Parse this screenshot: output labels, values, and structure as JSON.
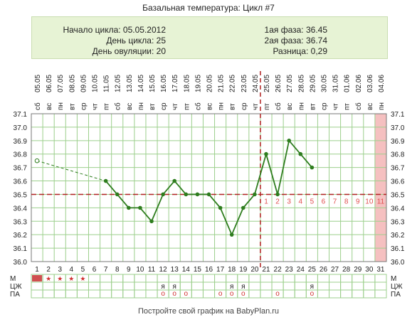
{
  "title": "Базальная температура: Цикл #7",
  "info": {
    "cycle_start": "Начало цикла: 05.05.2012",
    "cycle_day": "День цикла: 25",
    "ovulation_day": "День овуляции: 20",
    "phase1": "1ая фаза: 36.45",
    "phase2": "2ая фаза: 36.74",
    "difference": "Разница: 0,29"
  },
  "footer": "Постройте свой график на BabyPlan.ru",
  "colors": {
    "line": "#2e7d1e",
    "coverline": "#b02020",
    "ovulation_line": "#b02020",
    "luteal_numbers": "#e05050",
    "highlight_day": "#f5c0c0",
    "grid": "#9ccf8c",
    "period_cell": "#d05050",
    "star": "#d03030"
  },
  "chart_data": {
    "type": "line",
    "title": "Базальная температура: Цикл #7",
    "ylim": [
      36.0,
      37.1
    ],
    "yticks": [
      "37.1",
      "37.0",
      "36.9",
      "36.8",
      "36.7",
      "36.6",
      "36.5",
      "36.4",
      "36.3",
      "36.2",
      "36.1",
      "36.0"
    ],
    "weekdays": [
      "сб",
      "вс",
      "пн",
      "вт",
      "ср",
      "чт",
      "пт",
      "сб",
      "вс",
      "пн",
      "вт",
      "ср",
      "чт",
      "пт",
      "сб",
      "вс",
      "пн",
      "вт",
      "ср",
      "чт",
      "пт",
      "сб",
      "вс",
      "пн",
      "вт",
      "ср",
      "чт",
      "пт",
      "сб",
      "вс",
      "пн"
    ],
    "dates": [
      "05.05",
      "06.05",
      "07.05",
      "08.05",
      "09.05",
      "10.05",
      "11.05",
      "12.05",
      "13.05",
      "14.05",
      "15.05",
      "16.05",
      "17.05",
      "18.05",
      "19.05",
      "20.05",
      "21.05",
      "22.05",
      "23.05",
      "24.05",
      "25.05",
      "26.05",
      "27.05",
      "28.05",
      "29.05",
      "30.05",
      "31.05",
      "01.06",
      "02.06",
      "03.06",
      "04.06"
    ],
    "days": [
      "1",
      "2",
      "3",
      "4",
      "5",
      "6",
      "7",
      "8",
      "9",
      "10",
      "11",
      "12",
      "13",
      "14",
      "15",
      "16",
      "17",
      "18",
      "19",
      "20",
      "21",
      "22",
      "23",
      "24",
      "25",
      "26",
      "27",
      "28",
      "29",
      "30",
      "31"
    ],
    "temperatures": [
      36.75,
      null,
      null,
      null,
      null,
      null,
      36.6,
      36.5,
      36.4,
      36.4,
      36.3,
      36.5,
      36.6,
      36.5,
      36.5,
      36.5,
      36.4,
      36.2,
      36.4,
      36.5,
      36.8,
      36.5,
      36.9,
      36.8,
      36.7,
      null,
      null,
      null,
      null,
      null,
      null
    ],
    "dashed_segment_days": [
      1,
      7
    ],
    "coverline": 36.5,
    "ovulation_day": 20,
    "highlight_day": 31,
    "luteal_numbers": [
      "1",
      "2",
      "3",
      "4",
      "5",
      "6",
      "7",
      "8",
      "9",
      "10",
      "11"
    ],
    "luteal_start_day": 21,
    "rows": {
      "labels": [
        "М",
        "ЦЖ",
        "ПА"
      ],
      "period_days": [
        1
      ],
      "period_star_days": [
        2,
        3,
        4,
        5
      ],
      "cm_days": [
        12,
        13,
        18,
        19,
        25
      ],
      "cm_mark": "я",
      "intercourse_days": [
        12,
        13,
        14,
        17,
        18,
        19,
        22,
        25
      ],
      "intercourse_mark": "о"
    }
  }
}
